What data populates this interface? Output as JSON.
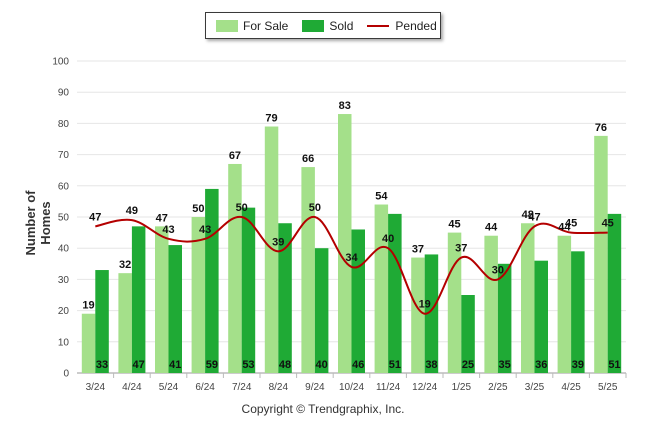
{
  "legend": {
    "for_sale": "For Sale",
    "sold": "Sold",
    "pended": "Pended"
  },
  "footer": "Copyright © Trendgraphix, Inc.",
  "colors": {
    "for_sale": "#a4e08a",
    "sold": "#1faa35",
    "pended": "#b40000",
    "grid": "#e6e6e6"
  },
  "chart_data": {
    "type": "bar",
    "title": "",
    "xlabel": "",
    "ylabel": "Number of Homes",
    "ylim": [
      0,
      100
    ],
    "yticks": [
      0,
      10,
      20,
      30,
      40,
      50,
      60,
      70,
      80,
      90,
      100
    ],
    "grid": true,
    "legend_position": "top-center",
    "categories": [
      "3/24",
      "4/24",
      "5/24",
      "6/24",
      "7/24",
      "8/24",
      "9/24",
      "10/24",
      "11/24",
      "12/24",
      "1/25",
      "2/25",
      "3/25",
      "4/25",
      "5/25"
    ],
    "series": [
      {
        "name": "For Sale",
        "kind": "bar",
        "values": [
          19,
          32,
          47,
          50,
          67,
          79,
          66,
          83,
          54,
          37,
          45,
          44,
          48,
          44,
          76
        ]
      },
      {
        "name": "Sold",
        "kind": "bar",
        "values": [
          33,
          47,
          41,
          59,
          53,
          48,
          40,
          46,
          51,
          38,
          25,
          35,
          36,
          39,
          51
        ]
      },
      {
        "name": "Pended",
        "kind": "line",
        "values": [
          47,
          49,
          43,
          43,
          50,
          39,
          50,
          34,
          40,
          19,
          37,
          30,
          47,
          45,
          45
        ]
      }
    ]
  }
}
